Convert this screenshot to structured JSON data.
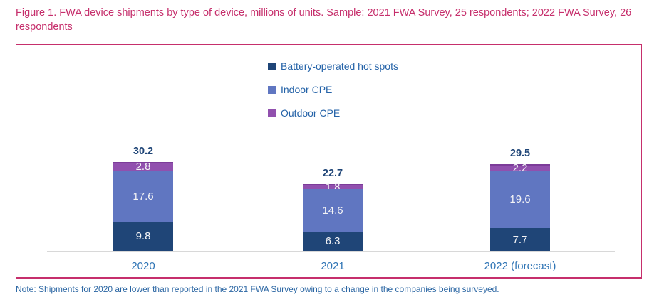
{
  "figure": {
    "title": "Figure 1. FWA device shipments by type of device, millions of units. Sample: 2021 FWA Survey, 25 respondents; 2022 FWA Survey, 26 respondents",
    "note": "Note: Shipments for 2020 are lower than reported in the 2021 FWA Survey owing to a change in the companies being surveyed."
  },
  "colors": {
    "title_pink": "#C62F6C",
    "box_border_pink": "#C62F6C",
    "battery_navy": "#1F4577",
    "indoor_blue": "#6076C1",
    "outdoor_purple": "#9150AE",
    "outdoor_purple_top_border": "#7C3C99",
    "total_label_navy": "#1F4577",
    "category_label_blue": "#2E74B5",
    "legend_text_blue": "#2563A8",
    "note_blue": "#2B66A3",
    "axis_gray": "#D8D8D8",
    "segment_text": "#F4F4F6"
  },
  "chart_data": {
    "type": "bar",
    "stacked": true,
    "title": "FWA device shipments by type of device, millions of units",
    "xlabel": "",
    "ylabel": "",
    "grid": false,
    "legend_position": "top-center",
    "categories": [
      "2020",
      "2021",
      "2022 (forecast)"
    ],
    "series": [
      {
        "name": "Battery-operated hot spots",
        "color": "#1F4577",
        "values": [
          9.8,
          6.3,
          7.7
        ]
      },
      {
        "name": "Indoor CPE",
        "color": "#6076C1",
        "values": [
          17.6,
          14.6,
          19.6
        ]
      },
      {
        "name": "Outdoor CPE",
        "color": "#9150AE",
        "values": [
          2.8,
          1.8,
          2.2
        ]
      }
    ],
    "totals": [
      30.2,
      22.7,
      29.5
    ]
  }
}
